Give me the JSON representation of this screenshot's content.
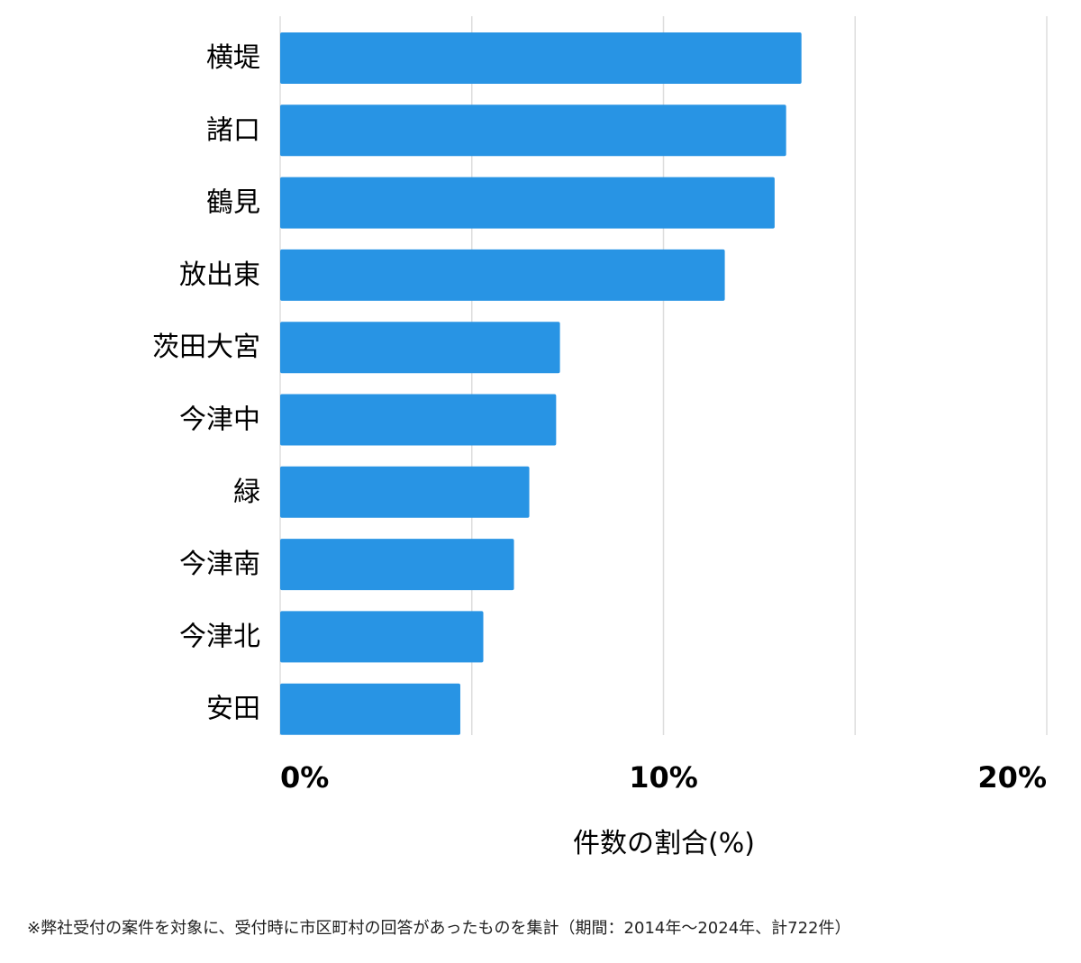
{
  "chart_data": {
    "type": "bar",
    "orientation": "horizontal",
    "categories": [
      "横堤",
      "諸口",
      "鶴見",
      "放出東",
      "茨田大宮",
      "今津中",
      "緑",
      "今津南",
      "今津北",
      "安田"
    ],
    "values": [
      13.6,
      13.2,
      12.9,
      11.6,
      7.3,
      7.2,
      6.5,
      6.1,
      5.3,
      4.7
    ],
    "xlabel": "件数の割合(%)",
    "ylabel": "",
    "xlim": [
      0,
      20
    ],
    "grid_values": [
      0,
      5,
      10,
      15,
      20
    ],
    "tick_values": [
      0,
      10,
      20
    ],
    "tick_labels": [
      "0%",
      "10%",
      "20%"
    ],
    "grid": true,
    "bar_color": "#2894e4",
    "grid_color": "#dddddd"
  },
  "footnote": "※弊社受付の案件を対象に、受付時に市区町村の回答があったものを集計（期間：2014年～2024年、計722件）"
}
